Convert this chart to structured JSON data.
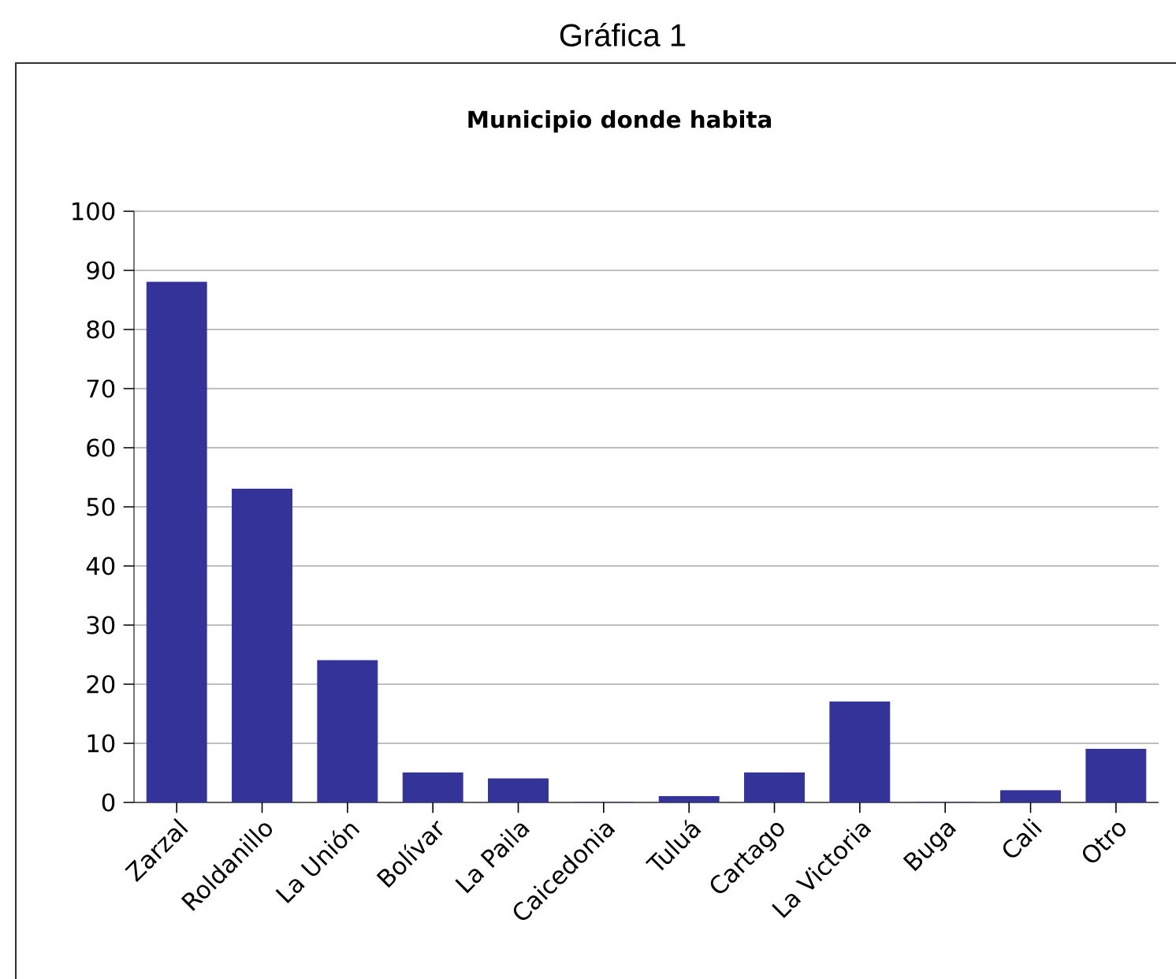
{
  "chart_data": {
    "type": "bar",
    "title": "Municipio donde habita",
    "annotations": [
      "Gráfica 1"
    ],
    "categories": [
      "Zarzal",
      "Roldanillo",
      "La Unión",
      "Bolívar",
      "La Paila",
      "Caicedonia",
      "Tuluá",
      "Cartago",
      "La Victoria",
      "Buga",
      "Cali",
      "Otro"
    ],
    "values": [
      88,
      53,
      24,
      5,
      4,
      0,
      1,
      5,
      17,
      0,
      2,
      9
    ],
    "color": "#333399",
    "ylim": [
      0,
      100
    ],
    "yticks": [
      0,
      10,
      20,
      30,
      40,
      50,
      60,
      70,
      80,
      90,
      100
    ],
    "grid": "y"
  }
}
